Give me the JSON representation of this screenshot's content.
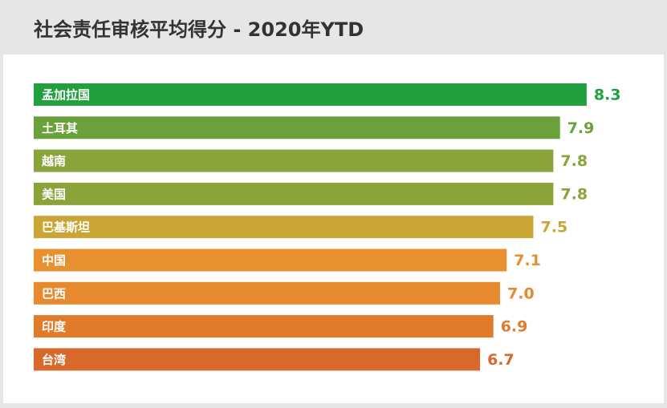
{
  "chart_data": {
    "type": "bar",
    "orientation": "horizontal",
    "title": "社会责任审核平均得分 - 2020年YTD",
    "categories": [
      "孟加拉国",
      "土耳其",
      "越南",
      "美国",
      "巴基斯坦",
      "中国",
      "巴西",
      "印度",
      "台湾"
    ],
    "values": [
      8.3,
      7.9,
      7.8,
      7.8,
      7.5,
      7.1,
      7.0,
      6.9,
      6.7
    ],
    "value_labels": [
      "8.3",
      "7.9",
      "7.8",
      "7.8",
      "7.5",
      "7.1",
      "7.0",
      "6.9",
      "6.7"
    ],
    "colors": [
      "#22a03f",
      "#6aa13a",
      "#88a43a",
      "#8aa43a",
      "#c8a535",
      "#e88f2f",
      "#e6892f",
      "#e07b2c",
      "#d8692a"
    ]
  }
}
